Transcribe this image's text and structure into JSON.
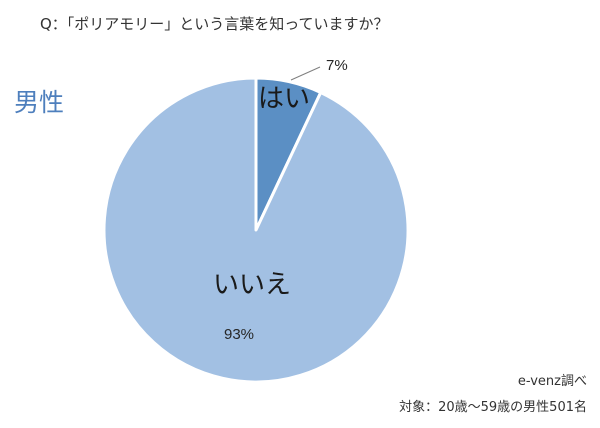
{
  "chart_data": {
    "type": "pie",
    "title": "Q：「ポリアモリー」という言葉を知っていますか？",
    "group_label": "男性",
    "slices": [
      {
        "label": "はい",
        "value": 7,
        "value_label": "7%",
        "color": "#5b8fc4"
      },
      {
        "label": "いいえ",
        "value": 93,
        "value_label": "93%",
        "color": "#a2c0e3"
      }
    ],
    "start_angle_deg": 0,
    "direction": "clockwise",
    "edge_color": "#ffffff"
  },
  "notes": {
    "source": "e-venz調べ",
    "sample": "対象：20歳～59歳の男性501名"
  }
}
